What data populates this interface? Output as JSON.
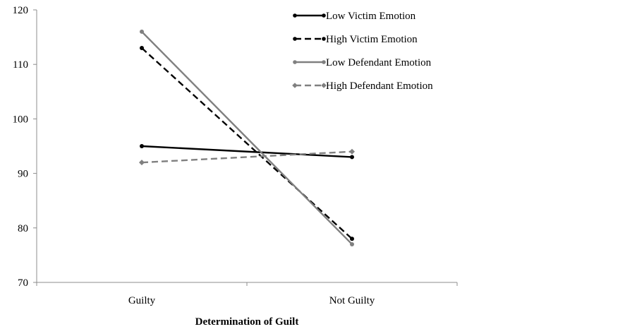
{
  "chart_data": {
    "type": "line",
    "title": "",
    "xlabel": "Determination of Guilt",
    "ylabel": "",
    "categories": [
      "Guilty",
      "Not Guilty"
    ],
    "ylim": [
      70,
      120
    ],
    "yticks": [
      70,
      80,
      90,
      100,
      110,
      120
    ],
    "grid": false,
    "legend_position": "top-right",
    "series": [
      {
        "name": "Low Victim Emotion",
        "values": [
          95,
          93
        ],
        "color": "#000000",
        "dash": "solid",
        "marker": "circle"
      },
      {
        "name": "High Victim Emotion",
        "values": [
          113,
          78
        ],
        "color": "#000000",
        "dash": "dashed",
        "marker": "circle"
      },
      {
        "name": "Low Defendant Emotion",
        "values": [
          116,
          77
        ],
        "color": "#808080",
        "dash": "solid",
        "marker": "circle"
      },
      {
        "name": "High Defendant Emotion",
        "values": [
          92,
          94
        ],
        "color": "#808080",
        "dash": "dashed",
        "marker": "diamond"
      }
    ]
  }
}
